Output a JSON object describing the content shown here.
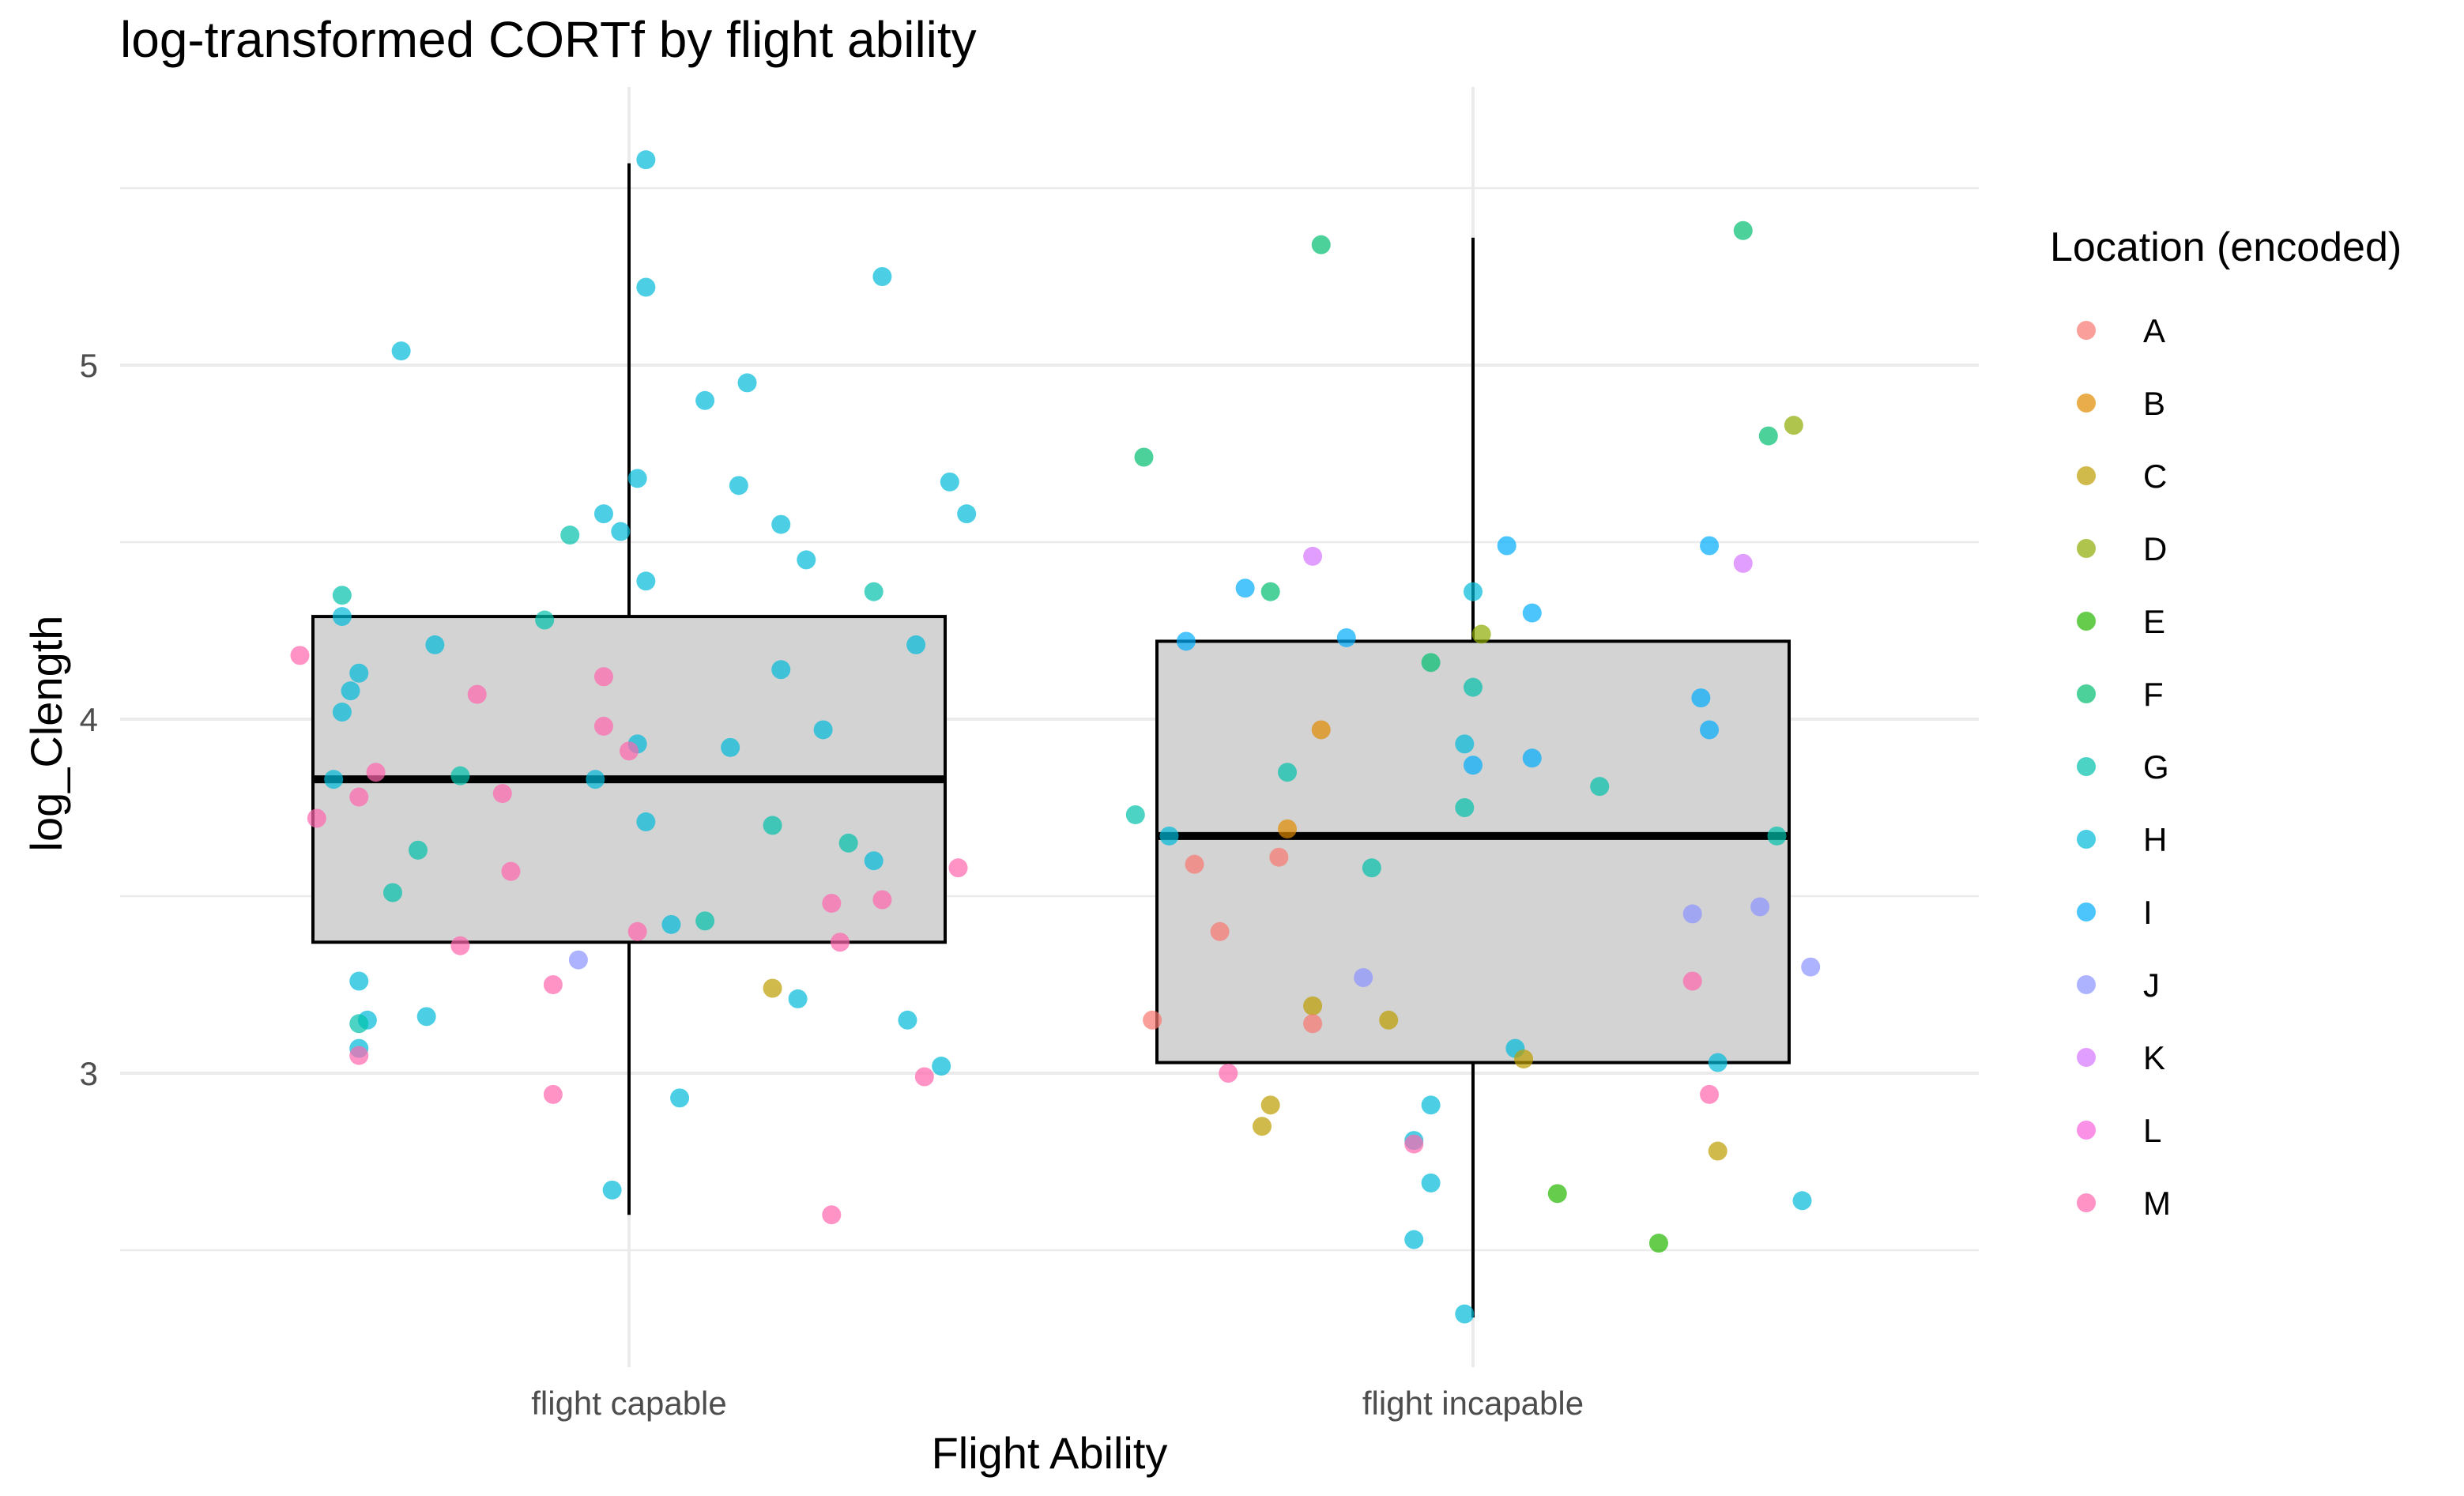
{
  "chart_data": {
    "type": "boxplot",
    "title": "log-transformed CORTf by flight ability",
    "xlabel": "Flight Ability",
    "ylabel": "log_Clength",
    "categories": [
      "flight capable",
      "flight incapable"
    ],
    "ylim": [
      2.25,
      5.7
    ],
    "yticks": [
      3,
      4,
      5
    ],
    "grid": true,
    "legend": {
      "title": "Location (encoded)",
      "position": "right",
      "entries": [
        {
          "label": "A",
          "color": "#F8766D"
        },
        {
          "label": "B",
          "color": "#E18A00"
        },
        {
          "label": "C",
          "color": "#BE9C00"
        },
        {
          "label": "D",
          "color": "#8CAB00"
        },
        {
          "label": "E",
          "color": "#24B700"
        },
        {
          "label": "F",
          "color": "#00BE70"
        },
        {
          "label": "G",
          "color": "#00C1AB"
        },
        {
          "label": "H",
          "color": "#00BBDA"
        },
        {
          "label": "I",
          "color": "#00ACFC"
        },
        {
          "label": "J",
          "color": "#8B93FF"
        },
        {
          "label": "K",
          "color": "#D575FE"
        },
        {
          "label": "L",
          "color": "#F962DD"
        },
        {
          "label": "M",
          "color": "#FF65AC"
        }
      ]
    },
    "boxes": [
      {
        "category": "flight capable",
        "whisker_low": 2.6,
        "q1": 3.37,
        "median": 3.83,
        "q3": 4.29,
        "whisker_high": 5.57
      },
      {
        "category": "flight incapable",
        "whisker_low": 2.31,
        "q1": 3.03,
        "median": 3.67,
        "q3": 4.22,
        "whisker_high": 5.36
      }
    ],
    "points": [
      {
        "group": 0,
        "jitter": 0.02,
        "y": 5.58,
        "loc": "H"
      },
      {
        "group": 0,
        "jitter": 0.02,
        "y": 5.22,
        "loc": "H"
      },
      {
        "group": 0,
        "jitter": 0.3,
        "y": 5.25,
        "loc": "H"
      },
      {
        "group": 0,
        "jitter": -0.27,
        "y": 5.04,
        "loc": "H"
      },
      {
        "group": 0,
        "jitter": 0.14,
        "y": 4.95,
        "loc": "H"
      },
      {
        "group": 0,
        "jitter": 0.09,
        "y": 4.9,
        "loc": "H"
      },
      {
        "group": 0,
        "jitter": 0.01,
        "y": 4.68,
        "loc": "H"
      },
      {
        "group": 0,
        "jitter": 0.13,
        "y": 4.66,
        "loc": "H"
      },
      {
        "group": 0,
        "jitter": 0.38,
        "y": 4.67,
        "loc": "H"
      },
      {
        "group": 0,
        "jitter": -0.03,
        "y": 4.58,
        "loc": "H"
      },
      {
        "group": 0,
        "jitter": 0.18,
        "y": 4.55,
        "loc": "H"
      },
      {
        "group": 0,
        "jitter": 0.4,
        "y": 4.58,
        "loc": "H"
      },
      {
        "group": 0,
        "jitter": -0.07,
        "y": 4.52,
        "loc": "G"
      },
      {
        "group": 0,
        "jitter": -0.01,
        "y": 4.53,
        "loc": "H"
      },
      {
        "group": 0,
        "jitter": 0.21,
        "y": 4.45,
        "loc": "H"
      },
      {
        "group": 0,
        "jitter": 0.02,
        "y": 4.39,
        "loc": "H"
      },
      {
        "group": 0,
        "jitter": -0.34,
        "y": 4.35,
        "loc": "G"
      },
      {
        "group": 0,
        "jitter": 0.29,
        "y": 4.36,
        "loc": "G"
      },
      {
        "group": 0,
        "jitter": -0.34,
        "y": 4.29,
        "loc": "H"
      },
      {
        "group": 0,
        "jitter": -0.1,
        "y": 4.28,
        "loc": "G"
      },
      {
        "group": 0,
        "jitter": -0.39,
        "y": 4.18,
        "loc": "M"
      },
      {
        "group": 0,
        "jitter": -0.23,
        "y": 4.21,
        "loc": "H"
      },
      {
        "group": 0,
        "jitter": 0.34,
        "y": 4.21,
        "loc": "H"
      },
      {
        "group": 0,
        "jitter": -0.32,
        "y": 4.13,
        "loc": "H"
      },
      {
        "group": 0,
        "jitter": 0.18,
        "y": 4.14,
        "loc": "H"
      },
      {
        "group": 0,
        "jitter": -0.03,
        "y": 4.12,
        "loc": "M"
      },
      {
        "group": 0,
        "jitter": -0.33,
        "y": 4.08,
        "loc": "H"
      },
      {
        "group": 0,
        "jitter": -0.18,
        "y": 4.07,
        "loc": "M"
      },
      {
        "group": 0,
        "jitter": -0.34,
        "y": 4.02,
        "loc": "H"
      },
      {
        "group": 0,
        "jitter": -0.03,
        "y": 3.98,
        "loc": "M"
      },
      {
        "group": 0,
        "jitter": 0.23,
        "y": 3.97,
        "loc": "H"
      },
      {
        "group": 0,
        "jitter": 0.01,
        "y": 3.93,
        "loc": "H"
      },
      {
        "group": 0,
        "jitter": 0.12,
        "y": 3.92,
        "loc": "H"
      },
      {
        "group": 0,
        "jitter": 0.0,
        "y": 3.91,
        "loc": "M"
      },
      {
        "group": 0,
        "jitter": -0.3,
        "y": 3.85,
        "loc": "M"
      },
      {
        "group": 0,
        "jitter": -0.2,
        "y": 3.84,
        "loc": "G"
      },
      {
        "group": 0,
        "jitter": -0.35,
        "y": 3.83,
        "loc": "H"
      },
      {
        "group": 0,
        "jitter": -0.04,
        "y": 3.83,
        "loc": "H"
      },
      {
        "group": 0,
        "jitter": -0.15,
        "y": 3.79,
        "loc": "M"
      },
      {
        "group": 0,
        "jitter": -0.32,
        "y": 3.78,
        "loc": "M"
      },
      {
        "group": 0,
        "jitter": -0.37,
        "y": 3.72,
        "loc": "M"
      },
      {
        "group": 0,
        "jitter": 0.02,
        "y": 3.71,
        "loc": "H"
      },
      {
        "group": 0,
        "jitter": 0.17,
        "y": 3.7,
        "loc": "G"
      },
      {
        "group": 0,
        "jitter": 0.26,
        "y": 3.65,
        "loc": "G"
      },
      {
        "group": 0,
        "jitter": -0.25,
        "y": 3.63,
        "loc": "G"
      },
      {
        "group": 0,
        "jitter": 0.29,
        "y": 3.6,
        "loc": "H"
      },
      {
        "group": 0,
        "jitter": -0.14,
        "y": 3.57,
        "loc": "M"
      },
      {
        "group": 0,
        "jitter": 0.39,
        "y": 3.58,
        "loc": "M"
      },
      {
        "group": 0,
        "jitter": -0.28,
        "y": 3.51,
        "loc": "G"
      },
      {
        "group": 0,
        "jitter": 0.3,
        "y": 3.49,
        "loc": "M"
      },
      {
        "group": 0,
        "jitter": 0.24,
        "y": 3.48,
        "loc": "M"
      },
      {
        "group": 0,
        "jitter": 0.09,
        "y": 3.43,
        "loc": "G"
      },
      {
        "group": 0,
        "jitter": 0.05,
        "y": 3.42,
        "loc": "H"
      },
      {
        "group": 0,
        "jitter": 0.01,
        "y": 3.4,
        "loc": "M"
      },
      {
        "group": 0,
        "jitter": -0.2,
        "y": 3.36,
        "loc": "M"
      },
      {
        "group": 0,
        "jitter": 0.25,
        "y": 3.37,
        "loc": "M"
      },
      {
        "group": 0,
        "jitter": -0.06,
        "y": 3.32,
        "loc": "J"
      },
      {
        "group": 0,
        "jitter": -0.32,
        "y": 3.26,
        "loc": "H"
      },
      {
        "group": 0,
        "jitter": -0.09,
        "y": 3.25,
        "loc": "M"
      },
      {
        "group": 0,
        "jitter": 0.17,
        "y": 3.24,
        "loc": "C"
      },
      {
        "group": 0,
        "jitter": 0.2,
        "y": 3.21,
        "loc": "H"
      },
      {
        "group": 0,
        "jitter": -0.24,
        "y": 3.16,
        "loc": "H"
      },
      {
        "group": 0,
        "jitter": -0.31,
        "y": 3.15,
        "loc": "H"
      },
      {
        "group": 0,
        "jitter": -0.32,
        "y": 3.14,
        "loc": "G"
      },
      {
        "group": 0,
        "jitter": 0.33,
        "y": 3.15,
        "loc": "H"
      },
      {
        "group": 0,
        "jitter": -0.32,
        "y": 3.07,
        "loc": "H"
      },
      {
        "group": 0,
        "jitter": -0.32,
        "y": 3.05,
        "loc": "M"
      },
      {
        "group": 0,
        "jitter": 0.37,
        "y": 3.02,
        "loc": "H"
      },
      {
        "group": 0,
        "jitter": 0.35,
        "y": 2.99,
        "loc": "M"
      },
      {
        "group": 0,
        "jitter": -0.09,
        "y": 2.94,
        "loc": "M"
      },
      {
        "group": 0,
        "jitter": 0.06,
        "y": 2.93,
        "loc": "H"
      },
      {
        "group": 0,
        "jitter": -0.02,
        "y": 2.67,
        "loc": "H"
      },
      {
        "group": 0,
        "jitter": 0.24,
        "y": 2.6,
        "loc": "M"
      },
      {
        "group": 1,
        "jitter": 0.32,
        "y": 5.38,
        "loc": "F"
      },
      {
        "group": 1,
        "jitter": -0.18,
        "y": 5.34,
        "loc": "F"
      },
      {
        "group": 1,
        "jitter": 0.38,
        "y": 4.83,
        "loc": "D"
      },
      {
        "group": 1,
        "jitter": 0.35,
        "y": 4.8,
        "loc": "F"
      },
      {
        "group": 1,
        "jitter": -0.39,
        "y": 4.74,
        "loc": "F"
      },
      {
        "group": 1,
        "jitter": 0.04,
        "y": 4.49,
        "loc": "I"
      },
      {
        "group": 1,
        "jitter": 0.28,
        "y": 4.49,
        "loc": "I"
      },
      {
        "group": 1,
        "jitter": -0.19,
        "y": 4.46,
        "loc": "K"
      },
      {
        "group": 1,
        "jitter": 0.32,
        "y": 4.44,
        "loc": "K"
      },
      {
        "group": 1,
        "jitter": -0.27,
        "y": 4.37,
        "loc": "I"
      },
      {
        "group": 1,
        "jitter": -0.24,
        "y": 4.36,
        "loc": "F"
      },
      {
        "group": 1,
        "jitter": 0.0,
        "y": 4.36,
        "loc": "H"
      },
      {
        "group": 1,
        "jitter": 0.07,
        "y": 4.3,
        "loc": "I"
      },
      {
        "group": 1,
        "jitter": 0.01,
        "y": 4.24,
        "loc": "D"
      },
      {
        "group": 1,
        "jitter": -0.15,
        "y": 4.23,
        "loc": "I"
      },
      {
        "group": 1,
        "jitter": -0.34,
        "y": 4.22,
        "loc": "I"
      },
      {
        "group": 1,
        "jitter": -0.05,
        "y": 4.16,
        "loc": "F"
      },
      {
        "group": 1,
        "jitter": 0.0,
        "y": 4.09,
        "loc": "G"
      },
      {
        "group": 1,
        "jitter": 0.27,
        "y": 4.06,
        "loc": "I"
      },
      {
        "group": 1,
        "jitter": -0.18,
        "y": 3.97,
        "loc": "B"
      },
      {
        "group": 1,
        "jitter": 0.28,
        "y": 3.97,
        "loc": "I"
      },
      {
        "group": 1,
        "jitter": -0.01,
        "y": 3.93,
        "loc": "H"
      },
      {
        "group": 1,
        "jitter": 0.07,
        "y": 3.89,
        "loc": "I"
      },
      {
        "group": 1,
        "jitter": 0.0,
        "y": 3.87,
        "loc": "I"
      },
      {
        "group": 1,
        "jitter": -0.22,
        "y": 3.85,
        "loc": "G"
      },
      {
        "group": 1,
        "jitter": 0.15,
        "y": 3.81,
        "loc": "G"
      },
      {
        "group": 1,
        "jitter": -0.01,
        "y": 3.75,
        "loc": "G"
      },
      {
        "group": 1,
        "jitter": -0.4,
        "y": 3.73,
        "loc": "G"
      },
      {
        "group": 1,
        "jitter": -0.22,
        "y": 3.69,
        "loc": "B"
      },
      {
        "group": 1,
        "jitter": -0.36,
        "y": 3.67,
        "loc": "H"
      },
      {
        "group": 1,
        "jitter": 0.36,
        "y": 3.67,
        "loc": "G"
      },
      {
        "group": 1,
        "jitter": -0.23,
        "y": 3.61,
        "loc": "A"
      },
      {
        "group": 1,
        "jitter": -0.33,
        "y": 3.59,
        "loc": "A"
      },
      {
        "group": 1,
        "jitter": -0.12,
        "y": 3.58,
        "loc": "G"
      },
      {
        "group": 1,
        "jitter": 0.34,
        "y": 3.47,
        "loc": "J"
      },
      {
        "group": 1,
        "jitter": 0.26,
        "y": 3.45,
        "loc": "J"
      },
      {
        "group": 1,
        "jitter": -0.3,
        "y": 3.4,
        "loc": "A"
      },
      {
        "group": 1,
        "jitter": 0.4,
        "y": 3.3,
        "loc": "J"
      },
      {
        "group": 1,
        "jitter": -0.13,
        "y": 3.27,
        "loc": "J"
      },
      {
        "group": 1,
        "jitter": 0.26,
        "y": 3.26,
        "loc": "M"
      },
      {
        "group": 1,
        "jitter": -0.19,
        "y": 3.19,
        "loc": "C"
      },
      {
        "group": 1,
        "jitter": -0.1,
        "y": 3.15,
        "loc": "C"
      },
      {
        "group": 1,
        "jitter": -0.38,
        "y": 3.15,
        "loc": "A"
      },
      {
        "group": 1,
        "jitter": -0.19,
        "y": 3.14,
        "loc": "A"
      },
      {
        "group": 1,
        "jitter": 0.05,
        "y": 3.07,
        "loc": "H"
      },
      {
        "group": 1,
        "jitter": 0.06,
        "y": 3.04,
        "loc": "C"
      },
      {
        "group": 1,
        "jitter": 0.29,
        "y": 3.03,
        "loc": "H"
      },
      {
        "group": 1,
        "jitter": -0.29,
        "y": 3.0,
        "loc": "M"
      },
      {
        "group": 1,
        "jitter": 0.28,
        "y": 2.94,
        "loc": "M"
      },
      {
        "group": 1,
        "jitter": -0.24,
        "y": 2.91,
        "loc": "C"
      },
      {
        "group": 1,
        "jitter": -0.05,
        "y": 2.91,
        "loc": "H"
      },
      {
        "group": 1,
        "jitter": -0.25,
        "y": 2.85,
        "loc": "C"
      },
      {
        "group": 1,
        "jitter": -0.07,
        "y": 2.81,
        "loc": "H"
      },
      {
        "group": 1,
        "jitter": -0.07,
        "y": 2.8,
        "loc": "M"
      },
      {
        "group": 1,
        "jitter": 0.29,
        "y": 2.78,
        "loc": "C"
      },
      {
        "group": 1,
        "jitter": -0.05,
        "y": 2.69,
        "loc": "H"
      },
      {
        "group": 1,
        "jitter": 0.1,
        "y": 2.66,
        "loc": "E"
      },
      {
        "group": 1,
        "jitter": 0.39,
        "y": 2.64,
        "loc": "H"
      },
      {
        "group": 1,
        "jitter": -0.07,
        "y": 2.53,
        "loc": "H"
      },
      {
        "group": 1,
        "jitter": 0.22,
        "y": 2.52,
        "loc": "E"
      },
      {
        "group": 1,
        "jitter": -0.01,
        "y": 2.32,
        "loc": "H"
      }
    ]
  }
}
